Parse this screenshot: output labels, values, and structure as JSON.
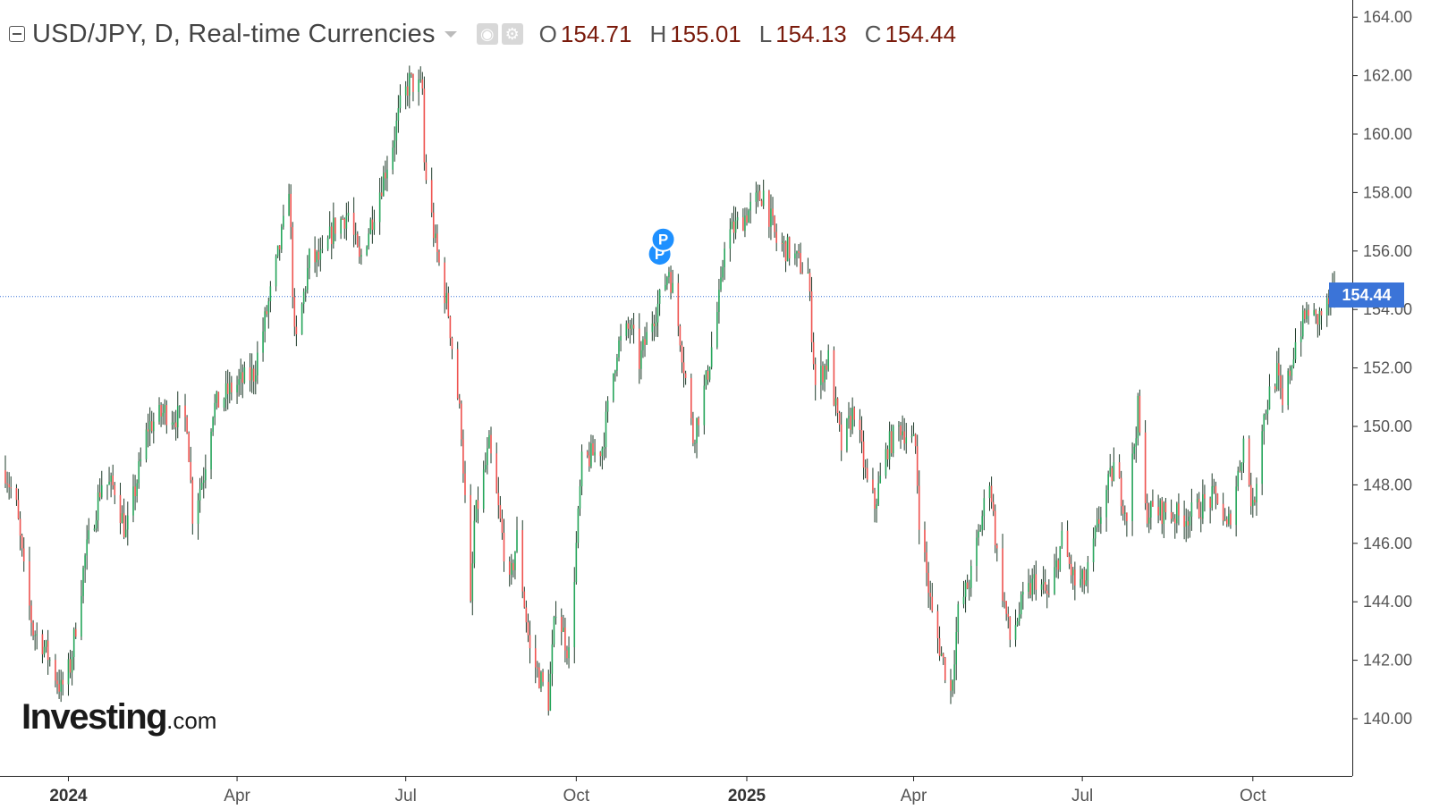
{
  "header": {
    "title": "USD/JPY, D, Real-time Currencies",
    "ohlc": [
      {
        "label": "O",
        "value": "154.71"
      },
      {
        "label": "H",
        "value": "155.01"
      },
      {
        "label": "L",
        "value": "154.13"
      },
      {
        "label": "C",
        "value": "154.44"
      }
    ]
  },
  "logo": {
    "brand": "Investing",
    "suffix": ".com"
  },
  "last_price_label": "154.44",
  "colors": {
    "up": "#26a65b",
    "down": "#ef5350",
    "wick": "#1f3b2a",
    "price_line": "#3b74d8",
    "marker": "#1e90ff"
  },
  "icons": [
    "collapse-icon",
    "eye-icon",
    "gear-icon"
  ],
  "chart_data": {
    "type": "candlestick",
    "series_name": "USD/JPY",
    "ylim": [
      138.0,
      164.5
    ],
    "y_ticks": [
      "140.00",
      "142.00",
      "144.00",
      "146.00",
      "148.00",
      "150.00",
      "152.00",
      "154.00",
      "156.00",
      "158.00",
      "160.00",
      "162.00",
      "164.00"
    ],
    "x_ticks": [
      {
        "label": "2024",
        "bold": true,
        "date": "2024-01-01"
      },
      {
        "label": "Apr",
        "bold": false,
        "date": "2024-04-01"
      },
      {
        "label": "Jul",
        "bold": false,
        "date": "2024-07-01"
      },
      {
        "label": "Oct",
        "bold": false,
        "date": "2024-10-01"
      },
      {
        "label": "2025",
        "bold": true,
        "date": "2025-01-01"
      },
      {
        "label": "Apr",
        "bold": false,
        "date": "2025-04-01"
      },
      {
        "label": "Jul",
        "bold": false,
        "date": "2025-07-01"
      },
      {
        "label": "Oct",
        "bold": false,
        "date": "2025-10-01"
      }
    ],
    "x_range": [
      "2023-11-28",
      "2025-11-14"
    ],
    "last_close": 154.44,
    "markers": [
      {
        "date": "2024-11-15",
        "value": 155.9,
        "label": "P"
      },
      {
        "date": "2024-11-14",
        "value": 156.4,
        "label": "P"
      }
    ],
    "close_path": [
      [
        "2023-11-28",
        148.5
      ],
      [
        "2023-12-04",
        147.2
      ],
      [
        "2023-12-08",
        145.0
      ],
      [
        "2023-12-13",
        143.0
      ],
      [
        "2023-12-18",
        142.6
      ],
      [
        "2023-12-22",
        142.0
      ],
      [
        "2023-12-28",
        141.0
      ],
      [
        "2024-01-02",
        141.8
      ],
      [
        "2024-01-10",
        145.5
      ],
      [
        "2024-01-19",
        148.1
      ],
      [
        "2024-01-26",
        147.9
      ],
      [
        "2024-02-01",
        146.3
      ],
      [
        "2024-02-13",
        150.0
      ],
      [
        "2024-02-22",
        150.5
      ],
      [
        "2024-03-05",
        150.2
      ],
      [
        "2024-03-08",
        147.0
      ],
      [
        "2024-03-14",
        148.4
      ],
      [
        "2024-03-19",
        150.6
      ],
      [
        "2024-03-29",
        151.3
      ],
      [
        "2024-04-10",
        151.8
      ],
      [
        "2024-04-19",
        154.5
      ],
      [
        "2024-04-26",
        156.8
      ],
      [
        "2024-04-29",
        158.3
      ],
      [
        "2024-05-02",
        153.0
      ],
      [
        "2024-05-03",
        152.9
      ],
      [
        "2024-05-10",
        155.7
      ],
      [
        "2024-05-17",
        155.7
      ],
      [
        "2024-05-23",
        156.8
      ],
      [
        "2024-05-31",
        157.3
      ],
      [
        "2024-06-06",
        155.6
      ],
      [
        "2024-06-14",
        157.4
      ],
      [
        "2024-06-24",
        159.7
      ],
      [
        "2024-06-28",
        160.9
      ],
      [
        "2024-07-03",
        161.8
      ],
      [
        "2024-07-10",
        161.5
      ],
      [
        "2024-07-11",
        159.0
      ],
      [
        "2024-07-17",
        156.2
      ],
      [
        "2024-07-24",
        153.9
      ],
      [
        "2024-07-31",
        149.9
      ],
      [
        "2024-08-05",
        143.7
      ],
      [
        "2024-08-07",
        146.7
      ],
      [
        "2024-08-15",
        149.3
      ],
      [
        "2024-08-26",
        144.5
      ],
      [
        "2024-08-30",
        146.2
      ],
      [
        "2024-09-06",
        142.3
      ],
      [
        "2024-09-16",
        140.6
      ],
      [
        "2024-09-20",
        143.9
      ],
      [
        "2024-09-27",
        142.2
      ],
      [
        "2024-10-04",
        148.7
      ],
      [
        "2024-10-15",
        149.3
      ],
      [
        "2024-10-23",
        152.7
      ],
      [
        "2024-10-30",
        153.4
      ],
      [
        "2024-11-04",
        152.2
      ],
      [
        "2024-11-11",
        153.7
      ],
      [
        "2024-11-15",
        154.3
      ],
      [
        "2024-11-20",
        155.4
      ],
      [
        "2024-11-26",
        153.1
      ],
      [
        "2024-12-03",
        149.6
      ],
      [
        "2024-12-10",
        151.5
      ],
      [
        "2024-12-18",
        154.7
      ],
      [
        "2024-12-20",
        156.4
      ],
      [
        "2024-12-31",
        157.2
      ],
      [
        "2025-01-10",
        158.0
      ],
      [
        "2025-01-17",
        156.3
      ],
      [
        "2025-01-24",
        156.0
      ],
      [
        "2025-02-03",
        155.2
      ],
      [
        "2025-02-07",
        151.4
      ],
      [
        "2025-02-14",
        152.3
      ],
      [
        "2025-02-21",
        149.3
      ],
      [
        "2025-02-28",
        150.6
      ],
      [
        "2025-03-07",
        148.0
      ],
      [
        "2025-03-11",
        147.3
      ],
      [
        "2025-03-18",
        149.3
      ],
      [
        "2025-03-25",
        150.0
      ],
      [
        "2025-04-02",
        149.3
      ],
      [
        "2025-04-04",
        146.9
      ],
      [
        "2025-04-11",
        143.5
      ],
      [
        "2025-04-21",
        140.9
      ],
      [
        "2025-04-25",
        143.6
      ],
      [
        "2025-05-02",
        144.9
      ],
      [
        "2025-05-12",
        148.3
      ],
      [
        "2025-05-16",
        145.6
      ],
      [
        "2025-05-23",
        142.7
      ],
      [
        "2025-05-30",
        144.0
      ],
      [
        "2025-06-06",
        144.8
      ],
      [
        "2025-06-13",
        144.1
      ],
      [
        "2025-06-20",
        146.1
      ],
      [
        "2025-06-27",
        144.6
      ],
      [
        "2025-07-03",
        144.7
      ],
      [
        "2025-07-11",
        147.1
      ],
      [
        "2025-07-18",
        148.6
      ],
      [
        "2025-07-25",
        147.0
      ],
      [
        "2025-07-31",
        150.6
      ],
      [
        "2025-08-04",
        147.1
      ],
      [
        "2025-08-15",
        147.1
      ],
      [
        "2025-08-22",
        146.9
      ],
      [
        "2025-08-29",
        147.0
      ],
      [
        "2025-09-05",
        147.4
      ],
      [
        "2025-09-12",
        147.6
      ],
      [
        "2025-09-17",
        146.4
      ],
      [
        "2025-09-24",
        148.7
      ],
      [
        "2025-09-26",
        149.5
      ],
      [
        "2025-10-01",
        147.1
      ],
      [
        "2025-10-06",
        150.1
      ],
      [
        "2025-10-10",
        151.1
      ],
      [
        "2025-10-14",
        151.8
      ],
      [
        "2025-10-17",
        150.6
      ],
      [
        "2025-10-24",
        152.9
      ],
      [
        "2025-10-31",
        154.0
      ],
      [
        "2025-11-04",
        153.6
      ],
      [
        "2025-11-10",
        154.1
      ],
      [
        "2025-11-14",
        154.44
      ]
    ]
  }
}
